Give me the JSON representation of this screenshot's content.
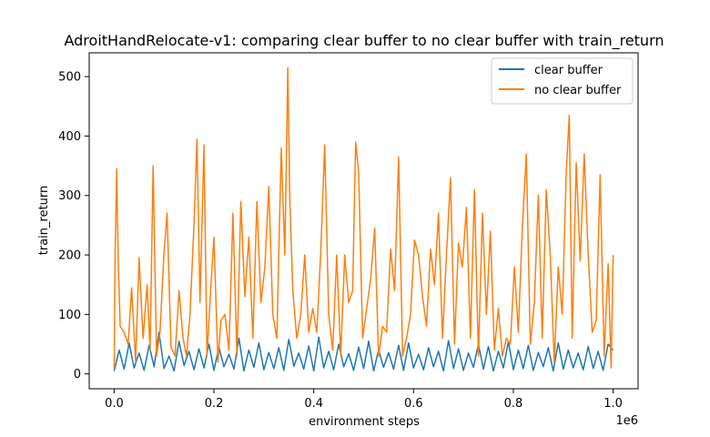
{
  "chart_data": {
    "type": "line",
    "title": "AdroitHandRelocate-v1: comparing clear buffer to no clear buffer with train_return",
    "xlabel": "environment steps",
    "ylabel": "train_return",
    "x_offset_label": "1e6",
    "xlim": [
      -0.05,
      1.05
    ],
    "ylim": [
      -25,
      540
    ],
    "x_ticks": [
      0.0,
      0.2,
      0.4,
      0.6,
      0.8,
      1.0
    ],
    "x_tick_labels": [
      "0.0",
      "0.2",
      "0.4",
      "0.6",
      "0.8",
      "1.0"
    ],
    "y_ticks": [
      0,
      100,
      200,
      300,
      400,
      500
    ],
    "y_tick_labels": [
      "0",
      "100",
      "200",
      "300",
      "400",
      "500"
    ],
    "grid": false,
    "legend_position": "top-right",
    "series": [
      {
        "name": "clear buffer",
        "color": "#1f77b4",
        "x": [
          0.0,
          0.01,
          0.02,
          0.03,
          0.04,
          0.05,
          0.06,
          0.07,
          0.08,
          0.09,
          0.1,
          0.11,
          0.12,
          0.13,
          0.14,
          0.15,
          0.16,
          0.17,
          0.18,
          0.19,
          0.2,
          0.21,
          0.22,
          0.23,
          0.24,
          0.25,
          0.26,
          0.27,
          0.28,
          0.29,
          0.3,
          0.31,
          0.32,
          0.33,
          0.34,
          0.35,
          0.36,
          0.37,
          0.38,
          0.39,
          0.4,
          0.41,
          0.42,
          0.43,
          0.44,
          0.45,
          0.46,
          0.47,
          0.48,
          0.49,
          0.5,
          0.51,
          0.52,
          0.53,
          0.54,
          0.55,
          0.56,
          0.57,
          0.58,
          0.59,
          0.6,
          0.61,
          0.62,
          0.63,
          0.64,
          0.65,
          0.66,
          0.67,
          0.68,
          0.69,
          0.7,
          0.71,
          0.72,
          0.73,
          0.74,
          0.75,
          0.76,
          0.77,
          0.78,
          0.79,
          0.8,
          0.81,
          0.82,
          0.83,
          0.84,
          0.85,
          0.86,
          0.87,
          0.88,
          0.89,
          0.9,
          0.91,
          0.92,
          0.93,
          0.94,
          0.95,
          0.96,
          0.97,
          0.98,
          0.99,
          1.0
        ],
        "y": [
          5,
          40,
          8,
          52,
          10,
          35,
          6,
          48,
          12,
          70,
          9,
          30,
          5,
          55,
          14,
          38,
          7,
          42,
          10,
          50,
          6,
          45,
          12,
          33,
          8,
          60,
          5,
          40,
          11,
          52,
          7,
          36,
          9,
          44,
          6,
          58,
          13,
          35,
          8,
          47,
          5,
          62,
          10,
          38,
          7,
          50,
          12,
          34,
          6,
          45,
          9,
          55,
          5,
          40,
          11,
          36,
          8,
          48,
          6,
          52,
          10,
          33,
          7,
          44,
          12,
          38,
          5,
          56,
          9,
          42,
          6,
          35,
          11,
          50,
          8,
          46,
          5,
          38,
          10,
          54,
          7,
          40,
          9,
          48,
          6,
          36,
          12,
          44,
          5,
          52,
          8,
          40,
          10,
          35,
          7,
          46,
          9,
          38,
          6,
          50,
          40
        ]
      },
      {
        "name": "no clear buffer",
        "color": "#ff7f0e",
        "x": [
          0.0,
          0.002,
          0.005,
          0.008,
          0.012,
          0.02,
          0.028,
          0.035,
          0.043,
          0.05,
          0.058,
          0.066,
          0.072,
          0.078,
          0.085,
          0.092,
          0.1,
          0.106,
          0.114,
          0.122,
          0.13,
          0.138,
          0.145,
          0.152,
          0.16,
          0.166,
          0.172,
          0.18,
          0.186,
          0.194,
          0.2,
          0.208,
          0.214,
          0.222,
          0.23,
          0.238,
          0.246,
          0.254,
          0.262,
          0.27,
          0.278,
          0.286,
          0.294,
          0.302,
          0.31,
          0.318,
          0.326,
          0.335,
          0.342,
          0.348,
          0.352,
          0.358,
          0.366,
          0.374,
          0.382,
          0.39,
          0.398,
          0.406,
          0.414,
          0.422,
          0.43,
          0.438,
          0.446,
          0.454,
          0.462,
          0.47,
          0.478,
          0.484,
          0.49,
          0.498,
          0.506,
          0.514,
          0.522,
          0.53,
          0.538,
          0.546,
          0.554,
          0.562,
          0.57,
          0.578,
          0.586,
          0.594,
          0.602,
          0.61,
          0.618,
          0.626,
          0.634,
          0.642,
          0.65,
          0.658,
          0.666,
          0.674,
          0.682,
          0.69,
          0.698,
          0.706,
          0.714,
          0.722,
          0.73,
          0.738,
          0.746,
          0.754,
          0.762,
          0.77,
          0.778,
          0.786,
          0.794,
          0.802,
          0.81,
          0.818,
          0.826,
          0.834,
          0.842,
          0.85,
          0.858,
          0.866,
          0.874,
          0.882,
          0.89,
          0.898,
          0.906,
          0.912,
          0.918,
          0.926,
          0.934,
          0.942,
          0.95,
          0.958,
          0.966,
          0.974,
          0.982,
          0.99,
          0.996,
          1.0
        ],
        "y": [
          10,
          205,
          345,
          195,
          80,
          70,
          50,
          145,
          20,
          195,
          60,
          150,
          40,
          350,
          30,
          70,
          205,
          270,
          45,
          30,
          140,
          60,
          30,
          100,
          250,
          395,
          120,
          385,
          30,
          150,
          230,
          20,
          90,
          100,
          40,
          270,
          30,
          290,
          130,
          230,
          60,
          290,
          120,
          180,
          315,
          100,
          60,
          380,
          200,
          515,
          290,
          140,
          60,
          100,
          200,
          70,
          110,
          70,
          205,
          385,
          100,
          40,
          200,
          30,
          200,
          120,
          140,
          390,
          340,
          60,
          110,
          160,
          245,
          30,
          80,
          70,
          210,
          140,
          365,
          30,
          60,
          100,
          225,
          200,
          130,
          80,
          210,
          150,
          270,
          60,
          200,
          330,
          50,
          220,
          180,
          280,
          60,
          310,
          30,
          270,
          100,
          240,
          40,
          110,
          30,
          60,
          50,
          180,
          70,
          245,
          370,
          50,
          120,
          300,
          60,
          310,
          200,
          20,
          180,
          100,
          340,
          435,
          60,
          355,
          190,
          370,
          200,
          70,
          90,
          335,
          30,
          185,
          10,
          200
        ]
      }
    ]
  }
}
